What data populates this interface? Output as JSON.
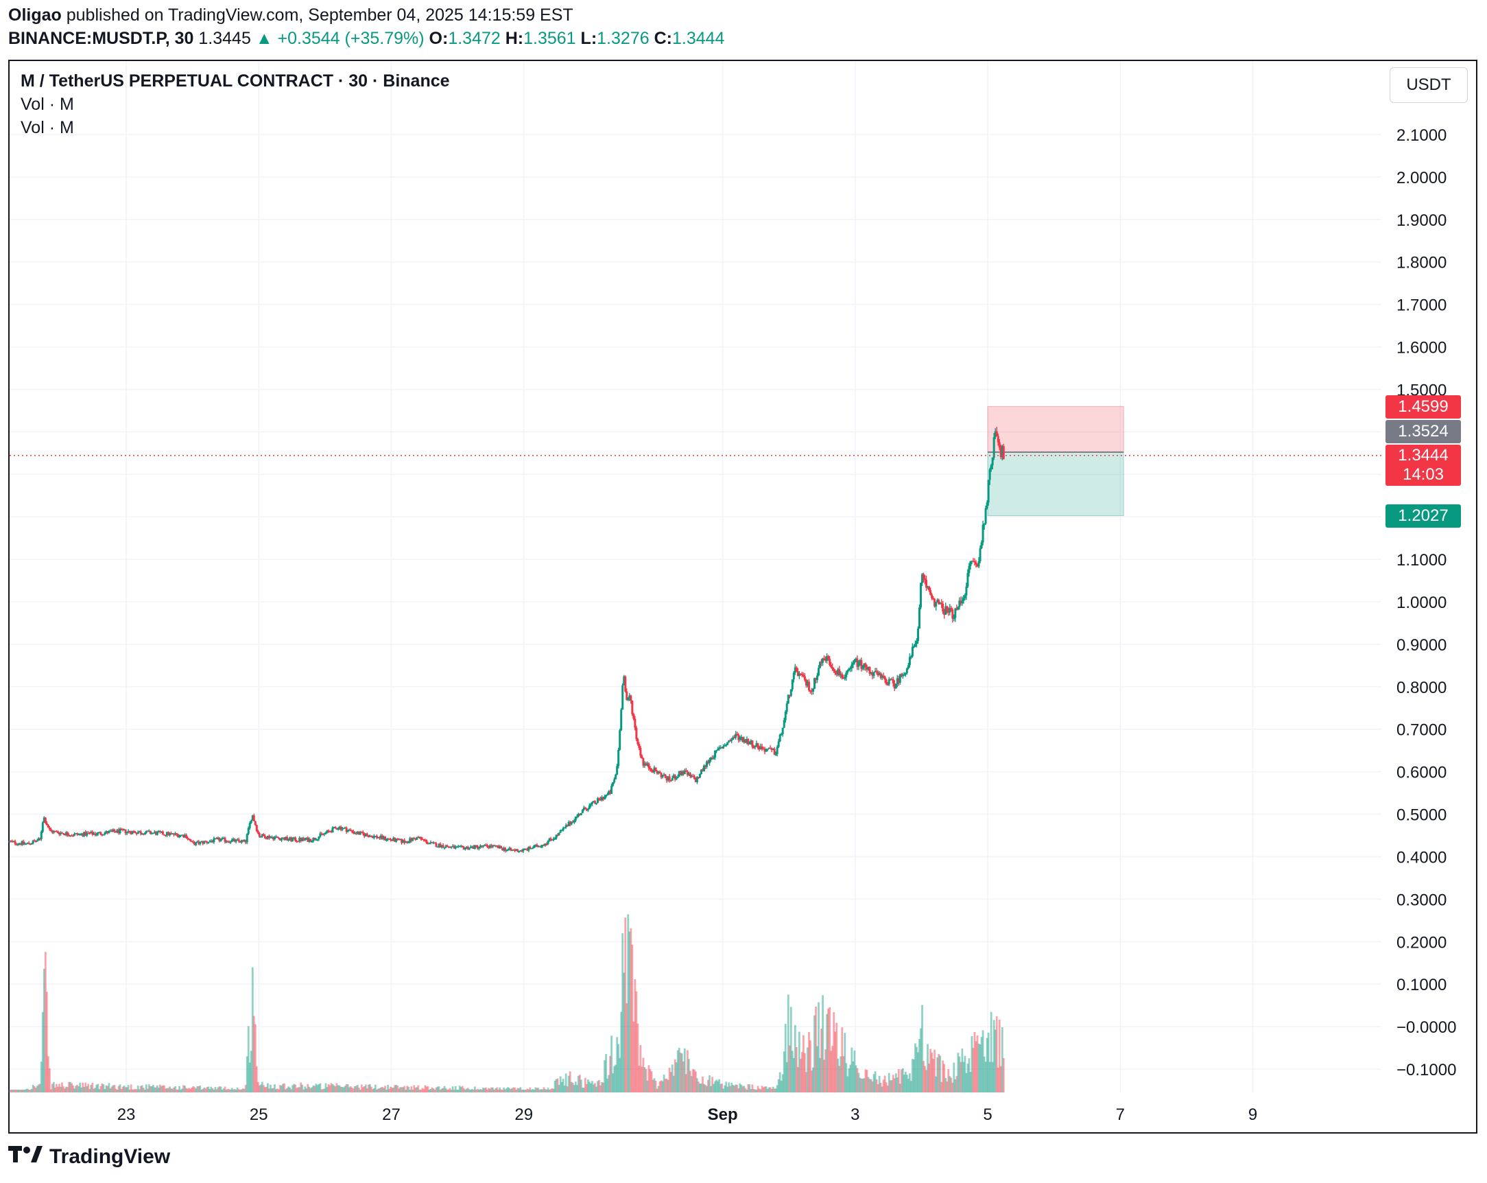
{
  "header": {
    "author": "Oligao",
    "published_text": "published on TradingView.com, September 04, 2025 14:15:59 EST",
    "symbol": "BINANCE:MUSDT.P, 30",
    "last_price": "1.3445",
    "change_arrow": "▲",
    "change": "+0.3544 (+35.79%)",
    "open_label": "O:",
    "open": "1.3472",
    "high_label": "H:",
    "high": "1.3561",
    "low_label": "L:",
    "low": "1.3276",
    "close_label": "C:",
    "close": "1.3444"
  },
  "legend": {
    "title": "M / TetherUS PERPETUAL CONTRACT · 30 · Binance",
    "volume_1": "Vol · M",
    "volume_2": "Vol · M"
  },
  "price_axis": {
    "unit": "USDT",
    "tags": {
      "stop": "1.4599",
      "entry": "1.3524",
      "last_price": "1.3444",
      "countdown": "14:03",
      "target": "1.2027"
    }
  },
  "colors": {
    "up": "#089981",
    "down": "#f23645",
    "stop_zone": "#f23645",
    "target_zone": "#089981",
    "grid": "#f0f3fa"
  },
  "chart_data": {
    "type": "candlestick",
    "interval": "30",
    "y_ticks": [
      2.1,
      2.0,
      1.9,
      1.8,
      1.7,
      1.6,
      1.5,
      1.4,
      1.3,
      1.2,
      1.1,
      1.0,
      0.9,
      0.8,
      0.7,
      0.6,
      0.5,
      0.4,
      0.3,
      0.2,
      0.1,
      -0.0,
      -0.1
    ],
    "y_tick_labels": [
      "2.1000",
      "2.0000",
      "1.9000",
      "1.8000",
      "1.7000",
      "1.6000",
      "1.5000",
      "1.4000",
      "1.3000",
      "1.2000",
      "1.1000",
      "1.0000",
      "0.9000",
      "0.8000",
      "0.7000",
      "0.6000",
      "0.5000",
      "0.4000",
      "0.3000",
      "0.2000",
      "0.1000",
      "−0.0000",
      "−0.1000"
    ],
    "ylim": [
      -0.16,
      2.26
    ],
    "x_ticks": [
      {
        "label": "23",
        "day": 23,
        "bold": false
      },
      {
        "label": "25",
        "day": 25,
        "bold": false
      },
      {
        "label": "27",
        "day": 27,
        "bold": false
      },
      {
        "label": "29",
        "day": 29,
        "bold": false
      },
      {
        "label": "Sep",
        "day": 32,
        "bold": true
      },
      {
        "label": "3",
        "day": 34,
        "bold": false
      },
      {
        "label": "5",
        "day": 36,
        "bold": false
      },
      {
        "label": "7",
        "day": 38,
        "bold": false
      },
      {
        "label": "9",
        "day": 40,
        "bold": false
      }
    ],
    "x_unit": "day (Aug numbering; Sep 1 = 32)",
    "xlim": [
      21.24,
      41.94
    ],
    "price_path": [
      [
        21.24,
        0.435
      ],
      [
        21.5,
        0.43
      ],
      [
        21.7,
        0.44
      ],
      [
        21.75,
        0.495
      ],
      [
        21.85,
        0.46
      ],
      [
        22.2,
        0.452
      ],
      [
        22.6,
        0.455
      ],
      [
        22.9,
        0.46
      ],
      [
        23.5,
        0.455
      ],
      [
        23.9,
        0.45
      ],
      [
        24.0,
        0.43
      ],
      [
        24.4,
        0.44
      ],
      [
        24.8,
        0.435
      ],
      [
        24.9,
        0.5
      ],
      [
        25.0,
        0.45
      ],
      [
        25.5,
        0.44
      ],
      [
        25.8,
        0.44
      ],
      [
        26.0,
        0.455
      ],
      [
        26.2,
        0.47
      ],
      [
        26.5,
        0.455
      ],
      [
        27.0,
        0.44
      ],
      [
        27.2,
        0.435
      ],
      [
        27.4,
        0.445
      ],
      [
        27.6,
        0.43
      ],
      [
        28.0,
        0.42
      ],
      [
        28.5,
        0.425
      ],
      [
        28.8,
        0.415
      ],
      [
        29.0,
        0.415
      ],
      [
        29.3,
        0.43
      ],
      [
        29.5,
        0.45
      ],
      [
        29.7,
        0.48
      ],
      [
        29.9,
        0.51
      ],
      [
        30.1,
        0.53
      ],
      [
        30.3,
        0.55
      ],
      [
        30.4,
        0.6
      ],
      [
        30.45,
        0.7
      ],
      [
        30.5,
        0.84
      ],
      [
        30.55,
        0.76
      ],
      [
        30.6,
        0.78
      ],
      [
        30.7,
        0.68
      ],
      [
        30.8,
        0.62
      ],
      [
        31.0,
        0.6
      ],
      [
        31.2,
        0.58
      ],
      [
        31.4,
        0.6
      ],
      [
        31.6,
        0.58
      ],
      [
        31.8,
        0.63
      ],
      [
        32.0,
        0.66
      ],
      [
        32.2,
        0.685
      ],
      [
        32.4,
        0.67
      ],
      [
        32.6,
        0.655
      ],
      [
        32.8,
        0.645
      ],
      [
        32.9,
        0.7
      ],
      [
        33.0,
        0.78
      ],
      [
        33.1,
        0.84
      ],
      [
        33.2,
        0.82
      ],
      [
        33.35,
        0.79
      ],
      [
        33.45,
        0.85
      ],
      [
        33.55,
        0.87
      ],
      [
        33.7,
        0.84
      ],
      [
        33.85,
        0.82
      ],
      [
        34.0,
        0.86
      ],
      [
        34.2,
        0.84
      ],
      [
        34.4,
        0.82
      ],
      [
        34.6,
        0.805
      ],
      [
        34.8,
        0.85
      ],
      [
        34.95,
        0.93
      ],
      [
        35.0,
        1.06
      ],
      [
        35.1,
        1.03
      ],
      [
        35.2,
        1.0
      ],
      [
        35.35,
        0.98
      ],
      [
        35.5,
        0.97
      ],
      [
        35.65,
        1.02
      ],
      [
        35.75,
        1.1
      ],
      [
        35.85,
        1.08
      ],
      [
        35.95,
        1.2
      ],
      [
        36.05,
        1.32
      ],
      [
        36.12,
        1.42
      ],
      [
        36.18,
        1.36
      ],
      [
        36.25,
        1.3444
      ]
    ],
    "volume_path": [
      [
        21.24,
        0.1
      ],
      [
        21.7,
        0.12
      ],
      [
        21.78,
        0.4
      ],
      [
        21.85,
        0.12
      ],
      [
        24.8,
        0.11
      ],
      [
        24.9,
        0.38
      ],
      [
        25.0,
        0.12
      ],
      [
        28.8,
        0.11
      ],
      [
        29.3,
        0.11
      ],
      [
        29.7,
        0.14
      ],
      [
        30.1,
        0.12
      ],
      [
        30.45,
        0.25
      ],
      [
        30.5,
        0.57
      ],
      [
        30.55,
        0.42
      ],
      [
        30.6,
        0.45
      ],
      [
        30.7,
        0.3
      ],
      [
        30.8,
        0.18
      ],
      [
        31.0,
        0.12
      ],
      [
        31.4,
        0.2
      ],
      [
        31.6,
        0.15
      ],
      [
        32.0,
        0.12
      ],
      [
        32.8,
        0.11
      ],
      [
        32.9,
        0.18
      ],
      [
        33.0,
        0.32
      ],
      [
        33.2,
        0.2
      ],
      [
        33.5,
        0.28
      ],
      [
        33.8,
        0.22
      ],
      [
        34.0,
        0.18
      ],
      [
        34.4,
        0.13
      ],
      [
        34.8,
        0.15
      ],
      [
        34.95,
        0.22
      ],
      [
        35.0,
        0.3
      ],
      [
        35.1,
        0.2
      ],
      [
        35.4,
        0.15
      ],
      [
        35.75,
        0.2
      ],
      [
        35.9,
        0.24
      ],
      [
        36.05,
        0.3
      ],
      [
        36.12,
        0.28
      ],
      [
        36.25,
        0.2
      ]
    ],
    "position_tool": {
      "x_start": 36.0,
      "x_end": 38.05,
      "stop": 1.4599,
      "entry": 1.3524,
      "target": 1.2027
    },
    "last_price_line": 1.3444
  }
}
